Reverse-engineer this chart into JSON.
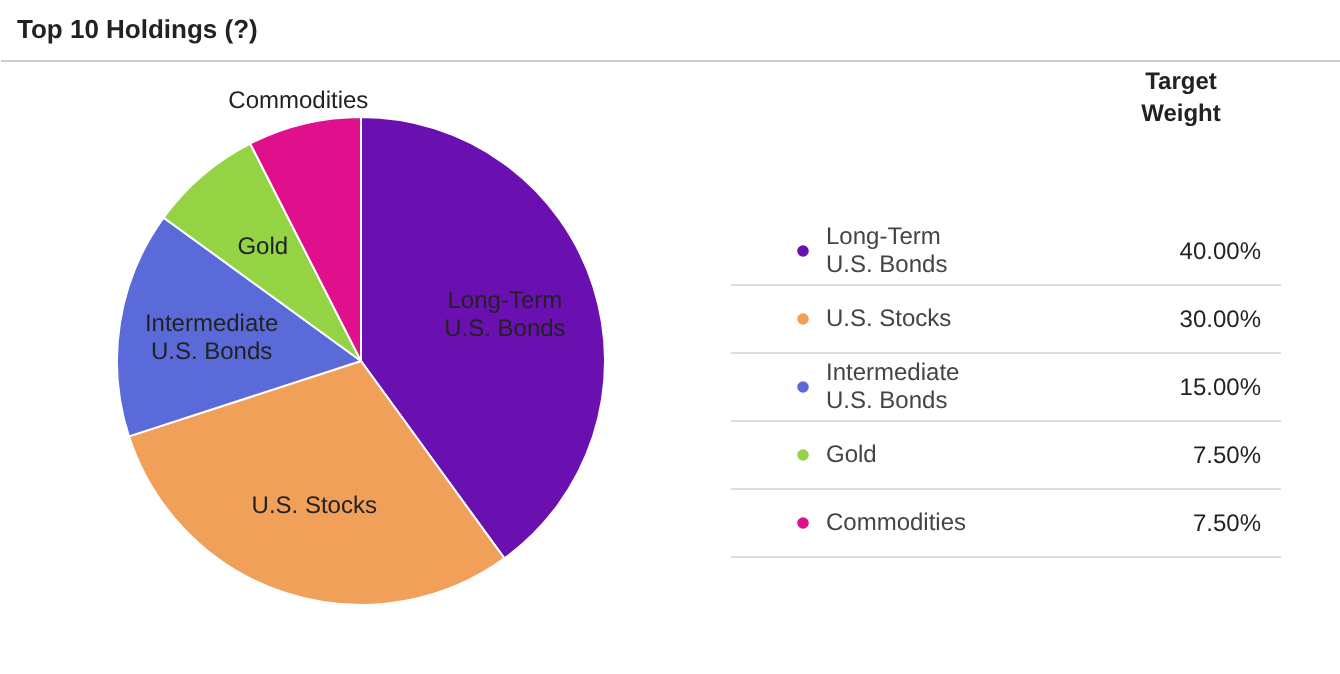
{
  "chart_data": {
    "type": "pie",
    "title": "Top 10 Holdings (?)",
    "categories": [
      "Long-Term\nU.S. Bonds",
      "U.S. Stocks",
      "Intermediate\nU.S. Bonds",
      "Gold",
      "Commodities"
    ],
    "values": [
      40,
      30,
      15,
      7.5,
      7.5
    ],
    "colors": [
      "#6a10b0",
      "#f0a058",
      "#5a6ad8",
      "#94d444",
      "#e0108c"
    ],
    "legend": "right",
    "annotations": [
      "Target\nWeight",
      "40.00%",
      "30.00%",
      "15.00%",
      "7.50%",
      "7.50%"
    ]
  }
}
